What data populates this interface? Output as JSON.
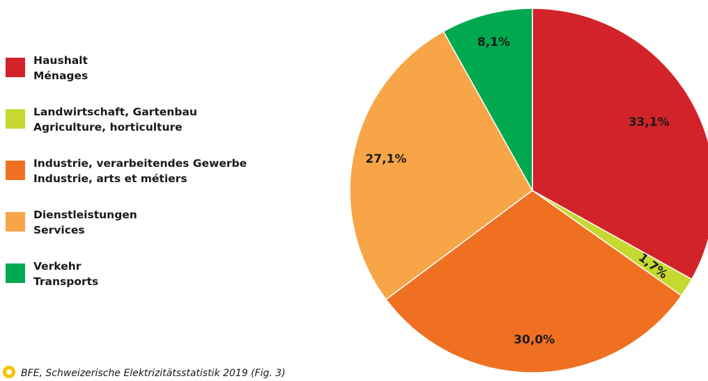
{
  "chart_data": {
    "type": "pie",
    "start_angle_deg": 0,
    "direction": "clockwise",
    "slices": [
      {
        "label_de": "Haushalt",
        "label_fr": "Ménages",
        "value": 33.1,
        "value_label": "33,1%",
        "color": "#d2232a"
      },
      {
        "label_de": "Landwirtschaft, Gartenbau",
        "label_fr": "Agriculture, horticulture",
        "value": 1.7,
        "value_label": "1,7%",
        "color": "#c5d92f"
      },
      {
        "label_de": "Industrie, verarbeitendes Gewerbe",
        "label_fr": "Industrie, arts et métiers",
        "value": 30.0,
        "value_label": "30,0%",
        "color": "#f07022"
      },
      {
        "label_de": "Dienstleistungen",
        "label_fr": "Services",
        "value": 27.1,
        "value_label": "27,1%",
        "color": "#f8a548"
      },
      {
        "label_de": "Verkehr",
        "label_fr": "Transports",
        "value": 8.1,
        "value_label": "8,1%",
        "color": "#00a84f"
      }
    ],
    "legend_placement": "left"
  },
  "source_text": "BFE, Schweizerische Elektrizitätsstatistik 2019 (Fig. 3)"
}
